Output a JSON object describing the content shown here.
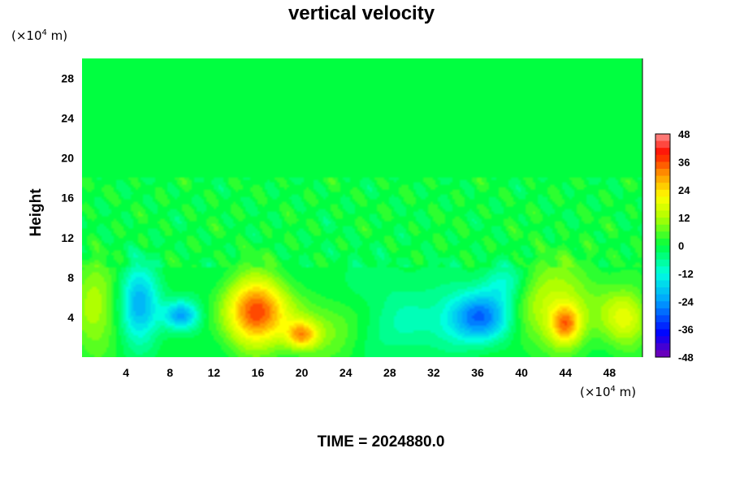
{
  "chart_data": {
    "type": "heatmap",
    "title": "vertical velocity",
    "ylabel": "Height",
    "xlabel": "",
    "x_unit": {
      "base": "(×10",
      "exp": "4",
      "rest": " m)"
    },
    "y_unit": {
      "base": "(×10",
      "exp": "4",
      "rest": " m)"
    },
    "xlim": [
      0,
      51
    ],
    "ylim": [
      0,
      30
    ],
    "x_ticks": [
      4,
      8,
      12,
      16,
      20,
      24,
      28,
      32,
      36,
      40,
      44,
      48
    ],
    "y_ticks": [
      4,
      8,
      12,
      16,
      20,
      24,
      28
    ],
    "colorbar": {
      "range": [
        -48,
        48
      ],
      "ticks": [
        48,
        36,
        24,
        12,
        0,
        -12,
        -24,
        -36,
        -48
      ]
    },
    "background_value": 0,
    "features": [
      {
        "x": 5.2,
        "y": 5.2,
        "sx": 1.3,
        "sy": 2.6,
        "value": -26
      },
      {
        "x": 9.0,
        "y": 4.2,
        "sx": 1.1,
        "sy": 1.0,
        "value": -22
      },
      {
        "x": 15.8,
        "y": 4.6,
        "sx": 2.0,
        "sy": 2.4,
        "value": 40
      },
      {
        "x": 20.0,
        "y": 2.2,
        "sx": 1.0,
        "sy": 1.0,
        "value": 24
      },
      {
        "x": 22.5,
        "y": 3.0,
        "sx": 2.5,
        "sy": 2.0,
        "value": 8
      },
      {
        "x": 28.0,
        "y": 2.8,
        "sx": 3.0,
        "sy": 2.0,
        "value": -6
      },
      {
        "x": 36.3,
        "y": 4.0,
        "sx": 2.2,
        "sy": 1.8,
        "value": -30
      },
      {
        "x": 38.5,
        "y": 7.5,
        "sx": 1.5,
        "sy": 1.6,
        "value": -14
      },
      {
        "x": 44.0,
        "y": 3.3,
        "sx": 1.0,
        "sy": 1.4,
        "value": 26
      },
      {
        "x": 43.0,
        "y": 5.5,
        "sx": 3.5,
        "sy": 3.0,
        "value": 12
      },
      {
        "x": 49.5,
        "y": 4.0,
        "sx": 1.5,
        "sy": 2.0,
        "value": 20
      },
      {
        "x": 1.0,
        "y": 5.0,
        "sx": 1.5,
        "sy": 3.0,
        "value": 12
      },
      {
        "x": 24.0,
        "y": 7.0,
        "sx": 4.0,
        "sy": 2.5,
        "value": -4
      }
    ]
  },
  "time_label": "TIME = 2024880.0"
}
